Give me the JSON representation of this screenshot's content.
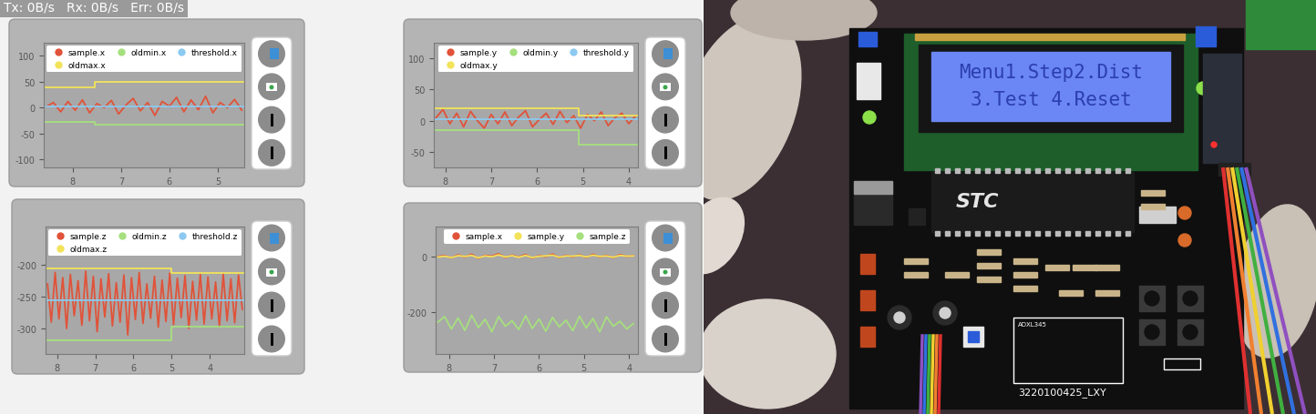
{
  "header": "Tx: 0B/s   Rx: 0B/s   Err: 0B/s",
  "chart_data": [
    {
      "type": "line",
      "legend": "upper center",
      "xlim": [
        8.6,
        4.45
      ],
      "xticks": [
        8,
        7,
        6,
        5
      ],
      "ylim": [
        -115,
        125
      ],
      "yticks": [
        -100,
        -50,
        0,
        50,
        100
      ],
      "series": [
        {
          "name": "sample.x",
          "color": "#e0533a",
          "x": [
            8.55,
            8.4,
            8.25,
            8.1,
            7.95,
            7.8,
            7.65,
            7.5,
            7.35,
            7.2,
            7.05,
            6.9,
            6.75,
            6.6,
            6.45,
            6.3,
            6.15,
            6.0,
            5.85,
            5.7,
            5.55,
            5.4,
            5.25,
            5.1,
            4.95,
            4.8,
            4.65,
            4.5
          ],
          "values": [
            2,
            10,
            -8,
            12,
            -5,
            15,
            -10,
            8,
            0,
            14,
            -12,
            5,
            18,
            -6,
            10,
            -15,
            12,
            3,
            20,
            -8,
            15,
            -4,
            22,
            -10,
            10,
            0,
            16,
            -5
          ]
        },
        {
          "name": "oldmax.x",
          "color": "#f2e35a",
          "x": [
            8.6,
            7.55,
            7.55,
            4.45
          ],
          "values": [
            40,
            40,
            50,
            50
          ]
        },
        {
          "name": "oldmin.x",
          "color": "#a6e07e",
          "x": [
            8.6,
            7.55,
            7.55,
            4.45
          ],
          "values": [
            -28,
            -28,
            -33,
            -33
          ]
        },
        {
          "name": "threshold.x",
          "color": "#8cc9f0",
          "x": [
            8.6,
            4.45
          ],
          "values": [
            3,
            3
          ]
        }
      ]
    },
    {
      "type": "line",
      "legend": "upper center",
      "xlim": [
        8.25,
        3.8
      ],
      "xticks": [
        8,
        7,
        6,
        5,
        4
      ],
      "ylim": [
        -75,
        125
      ],
      "yticks": [
        -50,
        0,
        50,
        100
      ],
      "series": [
        {
          "name": "sample.y",
          "color": "#e0533a",
          "x": [
            8.2,
            8.05,
            7.9,
            7.75,
            7.6,
            7.45,
            7.3,
            7.15,
            7.0,
            6.85,
            6.7,
            6.55,
            6.4,
            6.25,
            6.1,
            5.95,
            5.8,
            5.65,
            5.5,
            5.35,
            5.2,
            5.05,
            4.9,
            4.75,
            4.6,
            4.45,
            4.3,
            4.15,
            4.0,
            3.85
          ],
          "values": [
            5,
            18,
            -5,
            12,
            -10,
            15,
            0,
            -12,
            10,
            -5,
            14,
            -8,
            6,
            16,
            -10,
            2,
            12,
            -6,
            15,
            -3,
            8,
            -12,
            10,
            0,
            14,
            -8,
            5,
            12,
            -5,
            8
          ]
        },
        {
          "name": "oldmax.y",
          "color": "#f2e35a",
          "x": [
            8.25,
            5.1,
            5.1,
            3.8
          ],
          "values": [
            20,
            20,
            8,
            8
          ]
        },
        {
          "name": "oldmin.y",
          "color": "#a6e07e",
          "x": [
            8.25,
            5.1,
            5.1,
            3.8
          ],
          "values": [
            -15,
            -15,
            -38,
            -38
          ]
        },
        {
          "name": "threshold.y",
          "color": "#8cc9f0",
          "x": [
            8.25,
            3.8
          ],
          "values": [
            2,
            2
          ]
        }
      ]
    },
    {
      "type": "line",
      "legend": "upper center",
      "xlim": [
        8.3,
        3.1
      ],
      "xticks": [
        8,
        7,
        6,
        5,
        4
      ],
      "ylim": [
        -340,
        -140
      ],
      "yticks": [
        -300,
        -250,
        -200
      ],
      "series": [
        {
          "name": "sample.z",
          "color": "#e0533a",
          "x": [
            8.25,
            8.15,
            8.05,
            7.95,
            7.85,
            7.75,
            7.65,
            7.55,
            7.45,
            7.35,
            7.25,
            7.15,
            7.05,
            6.95,
            6.85,
            6.75,
            6.65,
            6.55,
            6.45,
            6.35,
            6.25,
            6.15,
            6.05,
            5.95,
            5.85,
            5.75,
            5.65,
            5.55,
            5.45,
            5.35,
            5.25,
            5.15,
            5.05,
            4.95,
            4.85,
            4.75,
            4.65,
            4.55,
            4.45,
            4.35,
            4.25,
            4.15,
            4.05,
            3.95,
            3.85,
            3.75,
            3.65,
            3.55,
            3.45,
            3.35,
            3.25,
            3.15
          ],
          "values": [
            -230,
            -290,
            -212,
            -285,
            -220,
            -300,
            -215,
            -280,
            -225,
            -295,
            -210,
            -288,
            -218,
            -305,
            -222,
            -282,
            -214,
            -296,
            -228,
            -290,
            -216,
            -310,
            -220,
            -286,
            -212,
            -292,
            -230,
            -284,
            -218,
            -298,
            -224,
            -289,
            -213,
            -294,
            -221,
            -283,
            -217,
            -300,
            -226,
            -287,
            -215,
            -293,
            -219,
            -285,
            -227,
            -297,
            -214,
            -288,
            -222,
            -291,
            -216,
            -270
          ]
        },
        {
          "name": "oldmax.z",
          "color": "#f2e35a",
          "x": [
            8.3,
            5.0,
            5.0,
            3.1
          ],
          "values": [
            -205,
            -205,
            -213,
            -213
          ]
        },
        {
          "name": "oldmin.z",
          "color": "#a6e07e",
          "x": [
            8.3,
            5.0,
            5.0,
            3.1
          ],
          "values": [
            -318,
            -318,
            -297,
            -297
          ]
        },
        {
          "name": "threshold.z",
          "color": "#8cc9f0",
          "x": [
            8.3,
            3.1
          ],
          "values": [
            -255,
            -255
          ]
        }
      ]
    },
    {
      "type": "line",
      "legend": "upper center",
      "xlim": [
        8.3,
        3.8
      ],
      "xticks": [
        8,
        7,
        6,
        5,
        4
      ],
      "ylim": [
        -350,
        110
      ],
      "yticks": [
        -200,
        0
      ],
      "x": [
        8.25,
        8.1,
        7.95,
        7.8,
        7.65,
        7.5,
        7.35,
        7.2,
        7.05,
        6.9,
        6.75,
        6.6,
        6.45,
        6.3,
        6.15,
        6.0,
        5.85,
        5.7,
        5.55,
        5.4,
        5.25,
        5.1,
        4.95,
        4.8,
        4.65,
        4.5,
        4.35,
        4.2,
        4.05,
        3.9
      ],
      "series": [
        {
          "name": "sample.x",
          "color": "#e0533a",
          "values": [
            2,
            5,
            -3,
            8,
            0,
            10,
            -5,
            6,
            3,
            12,
            -2,
            7,
            0,
            9,
            -4,
            5,
            2,
            11,
            -3,
            6,
            1,
            8,
            -2,
            10,
            0,
            6,
            -3,
            9,
            2,
            5
          ]
        },
        {
          "name": "sample.y",
          "color": "#f2e35a",
          "values": [
            0,
            3,
            -2,
            5,
            2,
            6,
            -3,
            4,
            1,
            8,
            0,
            5,
            -1,
            6,
            -2,
            3,
            4,
            7,
            -1,
            4,
            3,
            6,
            0,
            7,
            2,
            4,
            -1,
            6,
            3,
            4
          ]
        },
        {
          "name": "sample.z",
          "color": "#a6e07e",
          "values": [
            -235,
            -215,
            -260,
            -220,
            -265,
            -210,
            -255,
            -225,
            -270,
            -215,
            -250,
            -230,
            -262,
            -212,
            -258,
            -224,
            -268,
            -218,
            -252,
            -228,
            -266,
            -214,
            -256,
            -222,
            -270,
            -216,
            -250,
            -232,
            -260,
            -240
          ]
        }
      ]
    }
  ],
  "photo": {
    "lcd_lines": [
      "Menu1.Step2.Dist",
      "3.Test 4.Reset"
    ],
    "chip_label": "STC",
    "module_label": "ADXL345",
    "board_label": "3220100425_LXY"
  }
}
